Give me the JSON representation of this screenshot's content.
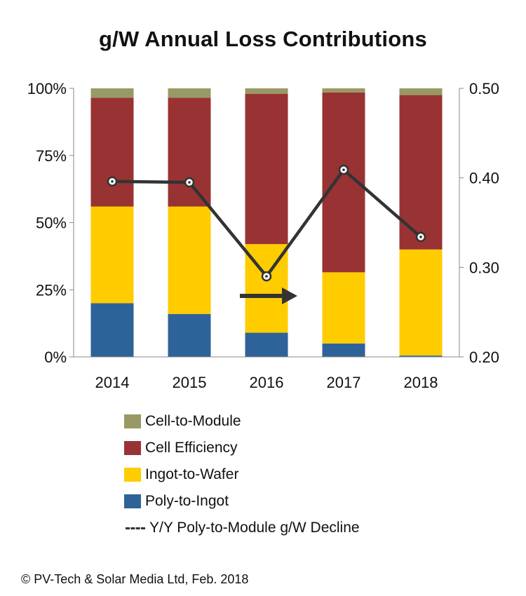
{
  "chart_data": {
    "type": "bar",
    "stacked": true,
    "normalized": true,
    "title": "g/W Annual Loss Contributions",
    "categories": [
      "2014",
      "2015",
      "2016",
      "2017",
      "2018"
    ],
    "series": [
      {
        "name": "Poly-to-Ingot",
        "color": "#2e6399",
        "values": [
          20,
          16,
          9,
          5,
          0.5
        ]
      },
      {
        "name": "Ingot-to-Wafer",
        "color": "#ffcc00",
        "values": [
          36,
          40,
          33,
          26.5,
          39.5
        ]
      },
      {
        "name": "Cell Efficiency",
        "color": "#993333",
        "values": [
          40.5,
          40.5,
          56,
          67,
          57.5
        ]
      },
      {
        "name": "Cell-to-Module",
        "color": "#999966",
        "values": [
          3.5,
          3.5,
          2,
          1.5,
          2.5
        ]
      }
    ],
    "line_series": {
      "name": "Y/Y Poly-to-Module g/W Decline",
      "color": "#333333",
      "axis": "right",
      "values": [
        0.396,
        0.395,
        0.29,
        0.409,
        0.334
      ]
    },
    "y_left": {
      "ylim": [
        0,
        100
      ],
      "ticks": [
        "0%",
        "25%",
        "50%",
        "75%",
        "100%"
      ]
    },
    "y_right": {
      "ylim": [
        0.2,
        0.5
      ],
      "ticks": [
        "0.20",
        "0.30",
        "0.40",
        "0.50"
      ]
    },
    "legend_order": [
      "Cell-to-Module",
      "Cell Efficiency",
      "Ingot-to-Wafer",
      "Poly-to-Ingot",
      "Y/Y Poly-to-Module g/W Decline"
    ],
    "legend_position": "bottom",
    "annotation": "right-arrow"
  },
  "footer": "© PV-Tech &  Solar Media Ltd, Feb. 2018"
}
